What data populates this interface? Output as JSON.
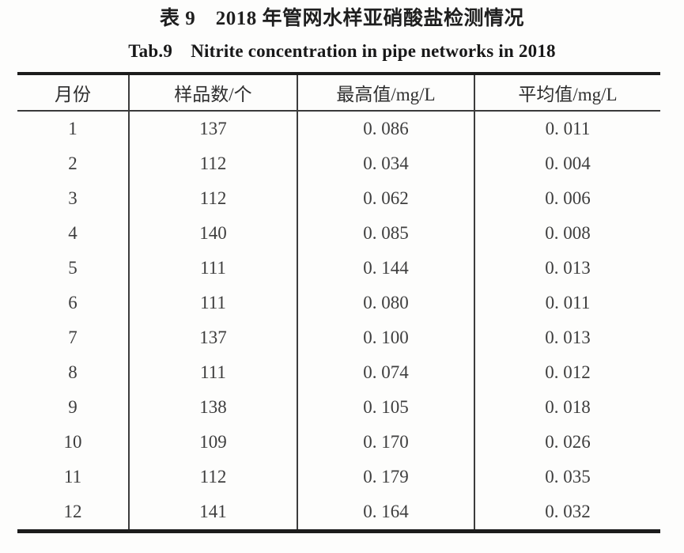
{
  "title_cn": "表 9　2018 年管网水样亚硝酸盐检测情况",
  "title_en": "Tab.9　Nitrite concentration in pipe networks in 2018",
  "table": {
    "headers": [
      "月份",
      "样品数/个",
      "最高值/mg/L",
      "平均值/mg/L"
    ],
    "rows": [
      [
        "1",
        "137",
        "0. 086",
        "0. 011"
      ],
      [
        "2",
        "112",
        "0. 034",
        "0. 004"
      ],
      [
        "3",
        "112",
        "0. 062",
        "0. 006"
      ],
      [
        "4",
        "140",
        "0. 085",
        "0. 008"
      ],
      [
        "5",
        "111",
        "0. 144",
        "0. 013"
      ],
      [
        "6",
        "111",
        "0. 080",
        "0. 011"
      ],
      [
        "7",
        "137",
        "0. 100",
        "0. 013"
      ],
      [
        "8",
        "111",
        "0. 074",
        "0. 012"
      ],
      [
        "9",
        "138",
        "0. 105",
        "0. 018"
      ],
      [
        "10",
        "109",
        "0. 170",
        "0. 026"
      ],
      [
        "11",
        "112",
        "0. 179",
        "0. 035"
      ],
      [
        "12",
        "141",
        "0. 164",
        "0. 032"
      ]
    ]
  },
  "chart_data": {
    "type": "table",
    "title": "表9 2018年管网水样亚硝酸盐检测情况 (Tab.9 Nitrite concentration in pipe networks in 2018)",
    "columns": [
      "月份",
      "样品数/个",
      "最高值/mg/L",
      "平均值/mg/L"
    ],
    "months": [
      1,
      2,
      3,
      4,
      5,
      6,
      7,
      8,
      9,
      10,
      11,
      12
    ],
    "sample_counts": [
      137,
      112,
      112,
      140,
      111,
      111,
      137,
      111,
      138,
      109,
      112,
      141
    ],
    "max_values_mg_per_L": [
      0.086,
      0.034,
      0.062,
      0.085,
      0.144,
      0.08,
      0.1,
      0.074,
      0.105,
      0.17,
      0.179,
      0.164
    ],
    "avg_values_mg_per_L": [
      0.011,
      0.004,
      0.006,
      0.008,
      0.013,
      0.011,
      0.013,
      0.012,
      0.018,
      0.026,
      0.035,
      0.032
    ]
  }
}
